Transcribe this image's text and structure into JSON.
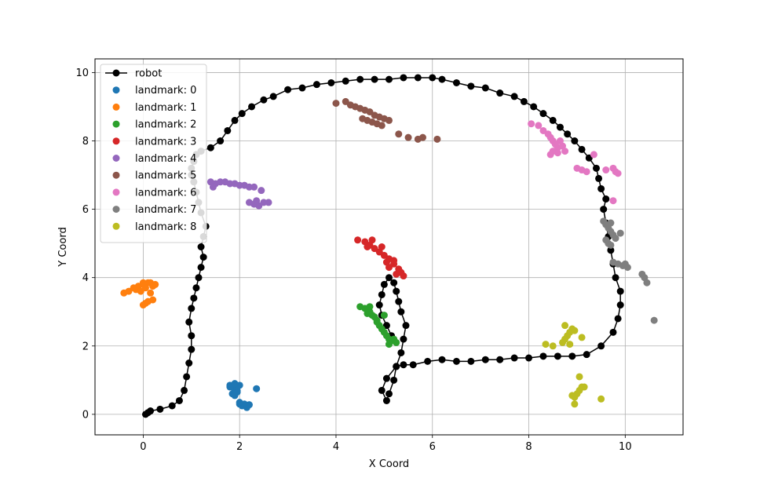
{
  "chart_data": {
    "type": "scatter",
    "xlabel": "X Coord",
    "ylabel": "Y Coord",
    "xlim": [
      -1.0,
      11.2
    ],
    "ylim": [
      -0.6,
      10.4
    ],
    "xticks": [
      0,
      2,
      4,
      6,
      8,
      10
    ],
    "yticks": [
      0,
      2,
      4,
      6,
      8,
      10
    ],
    "grid": true,
    "legend_position": "upper-left",
    "series": [
      {
        "name": "robot",
        "kind": "line-markers",
        "color": "#000000",
        "x": [
          0.05,
          0.1,
          0.15,
          0.35,
          0.6,
          0.75,
          0.85,
          0.9,
          0.95,
          1.0,
          1.0,
          0.95,
          1.0,
          1.05,
          1.1,
          1.15,
          1.2,
          1.25,
          1.2,
          1.25,
          1.3,
          1.2,
          1.15,
          1.1,
          1.05,
          1.0,
          1.0,
          1.05,
          1.1,
          1.2,
          1.4,
          1.6,
          1.75,
          1.9,
          2.05,
          2.25,
          2.5,
          2.7,
          3.0,
          3.3,
          3.6,
          3.9,
          4.2,
          4.5,
          4.8,
          5.1,
          5.4,
          5.7,
          6.0,
          6.2,
          6.5,
          6.8,
          7.1,
          7.4,
          7.7,
          7.9,
          8.1,
          8.3,
          8.5,
          8.65,
          8.8,
          8.95,
          9.1,
          9.25,
          9.4,
          9.45,
          9.5,
          9.6,
          9.55,
          9.6,
          9.65,
          9.7,
          9.75,
          9.8,
          9.9,
          9.9,
          9.85,
          9.75,
          9.5,
          9.2,
          8.9,
          8.6,
          8.3,
          8.0,
          7.7,
          7.4,
          7.1,
          6.8,
          6.5,
          6.2,
          5.9,
          5.6,
          5.4,
          5.25,
          5.05,
          4.95,
          5.05,
          5.1,
          5.2,
          5.25,
          5.35,
          5.4,
          5.45,
          5.35,
          5.3,
          5.25,
          5.2,
          5.1,
          5.0,
          4.95,
          4.9,
          4.95,
          5.05,
          5.15
        ],
        "y": [
          0.0,
          0.05,
          0.1,
          0.15,
          0.25,
          0.4,
          0.7,
          1.1,
          1.5,
          1.9,
          2.3,
          2.7,
          3.1,
          3.4,
          3.7,
          4.0,
          4.3,
          4.6,
          4.9,
          5.2,
          5.5,
          5.9,
          6.2,
          6.5,
          6.8,
          7.0,
          7.2,
          7.4,
          7.6,
          7.7,
          7.8,
          8.0,
          8.3,
          8.6,
          8.8,
          9.0,
          9.2,
          9.3,
          9.5,
          9.55,
          9.65,
          9.7,
          9.75,
          9.8,
          9.8,
          9.8,
          9.85,
          9.85,
          9.85,
          9.8,
          9.7,
          9.6,
          9.55,
          9.4,
          9.3,
          9.15,
          9.0,
          8.8,
          8.6,
          8.4,
          8.2,
          8.0,
          7.75,
          7.5,
          7.2,
          6.9,
          6.6,
          6.3,
          6.0,
          5.6,
          5.2,
          4.8,
          4.4,
          4.0,
          3.6,
          3.2,
          2.8,
          2.4,
          2.0,
          1.75,
          1.7,
          1.7,
          1.7,
          1.65,
          1.65,
          1.6,
          1.6,
          1.55,
          1.55,
          1.6,
          1.55,
          1.45,
          1.45,
          1.4,
          1.05,
          0.7,
          0.4,
          0.6,
          1.0,
          1.4,
          1.8,
          2.2,
          2.6,
          3.0,
          3.3,
          3.6,
          3.85,
          4.0,
          3.8,
          3.5,
          3.2,
          2.9,
          2.6,
          2.3
        ]
      },
      {
        "name": "landmark: 0",
        "kind": "markers",
        "color": "#1f77b4",
        "x": [
          1.8,
          1.85,
          1.9,
          1.95,
          2.0,
          1.85,
          1.9,
          1.95,
          1.8,
          1.9,
          2.0,
          2.05,
          2.1,
          2.15,
          2.2,
          2.0,
          2.35
        ],
        "y": [
          0.85,
          0.8,
          0.75,
          0.7,
          0.85,
          0.6,
          0.55,
          0.65,
          0.8,
          0.9,
          0.3,
          0.25,
          0.3,
          0.2,
          0.28,
          0.35,
          0.75
        ]
      },
      {
        "name": "landmark: 1",
        "kind": "markers",
        "color": "#ff7f0e",
        "x": [
          -0.4,
          -0.3,
          -0.2,
          -0.1,
          0.0,
          0.1,
          0.2,
          0.25,
          -0.15,
          0.05,
          0.15,
          0.0,
          0.1,
          0.2,
          0.05,
          -0.05,
          0.15,
          0.0
        ],
        "y": [
          3.55,
          3.6,
          3.7,
          3.75,
          3.8,
          3.85,
          3.75,
          3.8,
          3.65,
          3.7,
          3.85,
          3.2,
          3.3,
          3.35,
          3.25,
          3.6,
          3.55,
          3.85
        ]
      },
      {
        "name": "landmark: 2",
        "kind": "markers",
        "color": "#2ca02c",
        "x": [
          4.5,
          4.6,
          4.7,
          4.75,
          4.8,
          4.85,
          4.9,
          4.95,
          5.0,
          5.05,
          5.1,
          5.15,
          5.2,
          5.25,
          4.65,
          4.7,
          5.0,
          4.85,
          5.1
        ],
        "y": [
          3.15,
          3.1,
          3.0,
          2.9,
          2.85,
          2.75,
          2.6,
          2.5,
          2.4,
          2.3,
          2.2,
          2.15,
          2.2,
          2.1,
          2.95,
          3.15,
          2.9,
          2.7,
          2.05
        ]
      },
      {
        "name": "landmark: 3",
        "kind": "markers",
        "color": "#d62728",
        "x": [
          4.45,
          4.6,
          4.7,
          4.8,
          4.9,
          5.0,
          5.1,
          5.2,
          5.3,
          5.35,
          5.25,
          5.1,
          4.95,
          4.75,
          4.65,
          5.05,
          5.4,
          5.2
        ],
        "y": [
          5.1,
          5.05,
          4.95,
          4.85,
          4.75,
          4.65,
          4.55,
          4.4,
          4.25,
          4.15,
          4.1,
          4.3,
          4.9,
          5.1,
          4.9,
          4.45,
          4.05,
          4.5
        ]
      },
      {
        "name": "landmark: 4",
        "kind": "markers",
        "color": "#9467bd",
        "x": [
          1.4,
          1.5,
          1.6,
          1.7,
          1.8,
          1.9,
          2.0,
          2.1,
          2.2,
          2.3,
          2.45,
          2.2,
          2.3,
          2.4,
          2.5,
          2.6,
          1.45,
          2.35
        ],
        "y": [
          6.8,
          6.75,
          6.8,
          6.8,
          6.75,
          6.75,
          6.7,
          6.7,
          6.65,
          6.65,
          6.55,
          6.2,
          6.15,
          6.1,
          6.2,
          6.2,
          6.65,
          6.25
        ]
      },
      {
        "name": "landmark: 5",
        "kind": "markers",
        "color": "#8c564b",
        "x": [
          4.0,
          4.2,
          4.3,
          4.4,
          4.5,
          4.6,
          4.7,
          4.8,
          4.9,
          5.0,
          5.1,
          4.55,
          4.65,
          4.75,
          4.85,
          5.3,
          5.5,
          5.7,
          5.8,
          6.1,
          4.95
        ],
        "y": [
          9.1,
          9.15,
          9.05,
          9.0,
          8.95,
          8.9,
          8.85,
          8.75,
          8.7,
          8.65,
          8.6,
          8.65,
          8.6,
          8.55,
          8.5,
          8.2,
          8.1,
          8.05,
          8.1,
          8.05,
          8.45
        ]
      },
      {
        "name": "landmark: 6",
        "kind": "markers",
        "color": "#e377c2",
        "x": [
          8.05,
          8.2,
          8.3,
          8.4,
          8.45,
          8.5,
          8.55,
          8.6,
          8.65,
          8.7,
          8.75,
          8.5,
          8.6,
          8.45,
          9.0,
          9.1,
          9.2,
          9.35,
          9.6,
          9.75,
          9.8,
          9.85,
          9.75
        ],
        "y": [
          8.5,
          8.45,
          8.3,
          8.2,
          8.1,
          8.0,
          7.9,
          7.8,
          8.0,
          7.85,
          7.7,
          7.7,
          7.65,
          7.6,
          7.2,
          7.15,
          7.1,
          7.6,
          7.15,
          7.2,
          7.1,
          7.05,
          6.25
        ]
      },
      {
        "name": "landmark: 7",
        "kind": "markers",
        "color": "#7f7f7f",
        "x": [
          9.55,
          9.6,
          9.65,
          9.7,
          9.75,
          9.8,
          9.65,
          9.7,
          9.9,
          9.75,
          9.85,
          9.95,
          10.05,
          10.0,
          10.35,
          10.4,
          10.45,
          10.6,
          9.6,
          9.7
        ],
        "y": [
          5.65,
          5.55,
          5.45,
          5.35,
          5.25,
          5.15,
          5.0,
          4.95,
          5.3,
          4.45,
          4.4,
          4.35,
          4.3,
          4.4,
          4.1,
          4.0,
          3.85,
          2.75,
          5.1,
          5.6
        ]
      },
      {
        "name": "landmark: 8",
        "kind": "markers",
        "color": "#bcbd22",
        "x": [
          8.35,
          8.5,
          8.7,
          8.75,
          8.8,
          8.85,
          8.9,
          8.95,
          8.75,
          8.85,
          9.1,
          8.95,
          9.0,
          9.05,
          9.1,
          9.05,
          9.5,
          8.9,
          9.15,
          8.95
        ],
        "y": [
          2.05,
          2.0,
          2.1,
          2.2,
          2.3,
          2.4,
          2.5,
          2.45,
          2.6,
          2.05,
          2.25,
          0.5,
          0.6,
          0.7,
          0.8,
          1.1,
          0.45,
          0.55,
          0.8,
          0.3
        ]
      }
    ]
  }
}
